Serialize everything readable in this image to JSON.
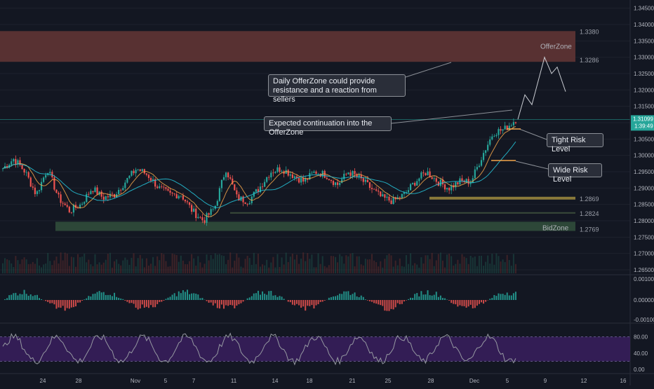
{
  "chart_data": {
    "type": "candlestick",
    "instrument": "GBP/USD",
    "colors": {
      "background": "#131722",
      "up": "#26a69a",
      "down": "#ef5350",
      "fast_ma": "#f5a64a",
      "slow_ma": "#26c6da",
      "offer_zone": "#5c3334",
      "bid_zone": "#2e4a3a",
      "tight_level_line": "#8a7a3a",
      "wide_level_line": "#3a4a3a",
      "price_tag_bg": "#26a69a",
      "price_line": "#26a69a",
      "stoch_band": "#3a1f5e",
      "stoch_line": "#9598a1",
      "axis_text": "#b2b5be"
    },
    "price_axis": {
      "ticks": [
        "1.34500",
        "1.34000",
        "1.33500",
        "1.33000",
        "1.32500",
        "1.32000",
        "1.31500",
        "1.31000",
        "1.30500",
        "1.30000",
        "1.29500",
        "1.29000",
        "1.28500",
        "1.28000",
        "1.27500",
        "1.27000",
        "1.26500"
      ],
      "ylim": [
        1.2635,
        1.3475
      ]
    },
    "current_price": {
      "value": 1.31099,
      "label": "1.31099",
      "countdown": "1:39:49"
    },
    "zones": [
      {
        "name": "OfferZone",
        "label": "OfferZone",
        "from": 1.3286,
        "to": 1.338,
        "label_top": "1.3380",
        "label_bottom": "1.3286"
      },
      {
        "name": "BidZone",
        "label": "BidZone",
        "from": 1.2769,
        "to": 1.2797,
        "label_bottom": "1.2769"
      }
    ],
    "levels": [
      {
        "name": "Tight Risk Level line",
        "value": 1.2869,
        "label": "1.2869"
      },
      {
        "name": "Wide Risk Level line",
        "value": 1.2824,
        "label": "1.2824"
      }
    ],
    "x_axis": {
      "ticks": [
        "24",
        "28",
        "Nov",
        "5",
        "7",
        "11",
        "14",
        "18",
        "21",
        "25",
        "28",
        "Dec",
        "5",
        "9",
        "12",
        "16"
      ]
    },
    "candles_approx": {
      "note_close_path": [
        1.296,
        1.299,
        1.295,
        1.288,
        1.296,
        1.287,
        1.283,
        1.285,
        1.29,
        1.287,
        1.288,
        1.292,
        1.296,
        1.294,
        1.29,
        1.288,
        1.288,
        1.283,
        1.28,
        1.284,
        1.296,
        1.287,
        1.286,
        1.29,
        1.295,
        1.296,
        1.294,
        1.292,
        1.295,
        1.294,
        1.291,
        1.295,
        1.293,
        1.29,
        1.287,
        1.286,
        1.288,
        1.292,
        1.295,
        1.292,
        1.29,
        1.292,
        1.292,
        1.3,
        1.307,
        1.308,
        1.311
      ]
    },
    "projection_path": [
      1.311,
      1.3185,
      1.3155,
      1.33,
      1.325,
      1.327,
      1.3195
    ],
    "macd": {
      "ticks": [
        "0.00100",
        "0.00000",
        "-0.00100"
      ]
    },
    "stochastic": {
      "ticks": [
        "80.00",
        "40.00",
        "0.00"
      ],
      "band": [
        20,
        80
      ]
    }
  },
  "annotations": {
    "offerzone_callout": "Daily OfferZone could provide resistance and a reaction from sellers",
    "continuation_callout": "Expected continuation into the OfferZone",
    "tight_risk": "Tight Risk Level",
    "wide_risk": "Wide Risk Level"
  }
}
